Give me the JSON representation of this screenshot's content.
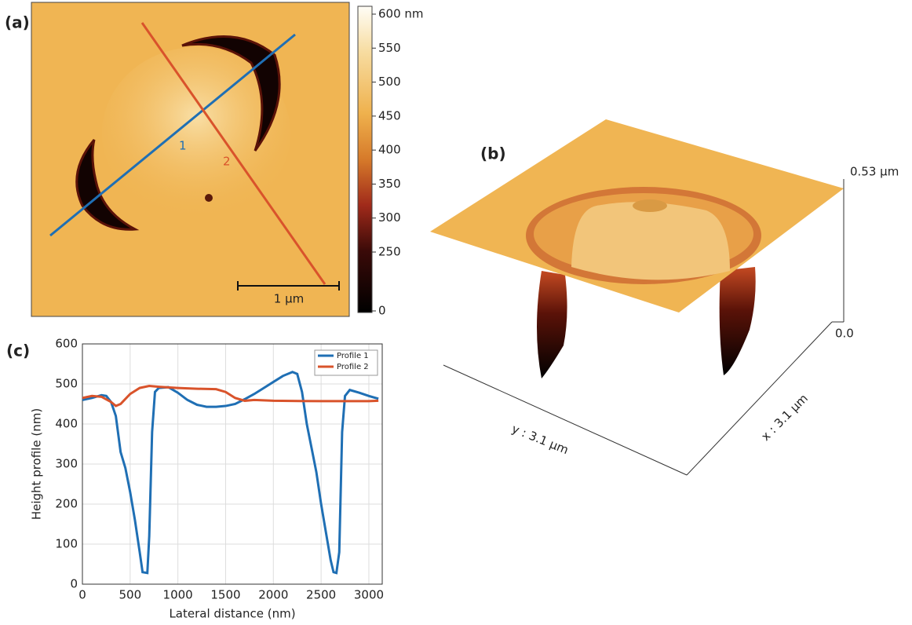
{
  "panel_labels": [
    "(a)",
    "(b)",
    "(c)"
  ],
  "afm_image": {
    "line_labels": [
      "1",
      "2"
    ],
    "scale_bar": "1 µm",
    "colorbar_ticks": [
      {
        "value": 600,
        "label": "600 nm"
      },
      550,
      500,
      450,
      400,
      350,
      300,
      250,
      0
    ]
  },
  "surface_3d": {
    "z_top": "0.53 µm",
    "z_bottom": "0.0",
    "y_axis": "y : 3.1 µm",
    "x_axis": "x : 3.1 µm"
  },
  "chart_data": {
    "type": "line",
    "xlabel": "Lateral distance (nm)",
    "ylabel": "Height profile (nm)",
    "xlim": [
      0,
      3140
    ],
    "ylim": [
      0,
      600
    ],
    "xticks": [
      0,
      500,
      1000,
      1500,
      2000,
      2500,
      3000
    ],
    "yticks": [
      0,
      100,
      200,
      300,
      400,
      500,
      600
    ],
    "grid": true,
    "legend": "upper right",
    "series": [
      {
        "name": "Profile 1",
        "color": "#1f6fb4",
        "x": [
          0,
          100,
          200,
          250,
          300,
          350,
          400,
          450,
          500,
          550,
          600,
          630,
          680,
          700,
          730,
          760,
          800,
          900,
          1000,
          1100,
          1200,
          1300,
          1400,
          1500,
          1600,
          1700,
          1800,
          1900,
          2000,
          2100,
          2200,
          2250,
          2300,
          2350,
          2400,
          2450,
          2500,
          2550,
          2600,
          2630,
          2660,
          2690,
          2720,
          2750,
          2800,
          2900,
          3000,
          3100
        ],
        "values": [
          460,
          465,
          472,
          470,
          455,
          420,
          330,
          290,
          230,
          160,
          80,
          30,
          28,
          120,
          380,
          480,
          490,
          492,
          478,
          460,
          448,
          443,
          443,
          445,
          450,
          462,
          475,
          490,
          505,
          520,
          530,
          525,
          480,
          400,
          340,
          280,
          200,
          130,
          60,
          30,
          28,
          80,
          380,
          470,
          485,
          478,
          470,
          463
        ]
      },
      {
        "name": "Profile 2",
        "color": "#d9532b",
        "x": [
          0,
          100,
          200,
          300,
          350,
          400,
          500,
          600,
          700,
          800,
          1000,
          1200,
          1400,
          1500,
          1600,
          1700,
          1800,
          2000,
          2500,
          3000,
          3100
        ],
        "values": [
          465,
          470,
          468,
          455,
          445,
          450,
          475,
          490,
          495,
          493,
          490,
          488,
          487,
          480,
          465,
          458,
          460,
          458,
          457,
          457,
          458
        ]
      }
    ]
  }
}
